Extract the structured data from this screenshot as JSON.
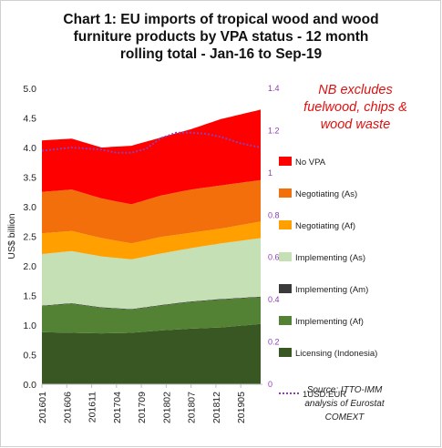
{
  "chart_data": {
    "type": "area",
    "title_lines": [
      "Chart 1: EU imports of tropical wood and wood",
      "furniture products by VPA status - 12 month",
      "rolling total - Jan-16 to Sep-19"
    ],
    "ylabel": "US$ billion",
    "ylim": [
      0,
      5.0
    ],
    "y_ticks": [
      "0.0",
      "0.5",
      "1.0",
      "1.5",
      "2.0",
      "2.5",
      "3.0",
      "3.5",
      "4.0",
      "4.5",
      "5.0"
    ],
    "y2lim": [
      0,
      1.4
    ],
    "y2_ticks": [
      "0",
      "0.2",
      "0.4",
      "0.6",
      "0.8",
      "1",
      "1.2",
      "1.4"
    ],
    "x_ticks": [
      "201601",
      "201606",
      "201611",
      "201704",
      "201709",
      "201802",
      "201807",
      "201812",
      "201905"
    ],
    "x_start": "2016-01",
    "x_end": "2019-09",
    "stacked": true,
    "legend_position": "right",
    "grid": false,
    "series": [
      {
        "name": "Licensing (Indonesia)",
        "color": "#385723",
        "x": [
          "2016-01",
          "2016-07",
          "2017-01",
          "2017-07",
          "2018-01",
          "2018-07",
          "2019-01",
          "2019-09"
        ],
        "values": [
          0.88,
          0.87,
          0.86,
          0.87,
          0.91,
          0.94,
          0.96,
          1.02
        ]
      },
      {
        "name": "Implementing (Af)",
        "color": "#548235",
        "x": [
          "2016-01",
          "2016-07",
          "2017-01",
          "2017-07",
          "2018-01",
          "2018-07",
          "2019-01",
          "2019-09"
        ],
        "values": [
          0.44,
          0.49,
          0.43,
          0.39,
          0.42,
          0.45,
          0.47,
          0.45
        ]
      },
      {
        "name": "Implementing (Am)",
        "color": "#3a3a3a",
        "x": [
          "2016-01",
          "2016-07",
          "2017-01",
          "2017-07",
          "2018-01",
          "2018-07",
          "2019-01",
          "2019-09"
        ],
        "values": [
          0.01,
          0.01,
          0.01,
          0.01,
          0.01,
          0.01,
          0.01,
          0.01
        ]
      },
      {
        "name": "Implementing (As)",
        "color": "#c5e0b4",
        "x": [
          "2016-01",
          "2016-07",
          "2017-01",
          "2017-07",
          "2018-01",
          "2018-07",
          "2019-01",
          "2019-09"
        ],
        "values": [
          0.87,
          0.88,
          0.86,
          0.84,
          0.87,
          0.9,
          0.94,
          0.99
        ]
      },
      {
        "name": "Negotiating (Af)",
        "color": "#ffa000",
        "x": [
          "2016-01",
          "2016-07",
          "2017-01",
          "2017-07",
          "2018-01",
          "2018-07",
          "2019-01",
          "2019-09"
        ],
        "values": [
          0.35,
          0.34,
          0.31,
          0.27,
          0.28,
          0.26,
          0.25,
          0.28
        ]
      },
      {
        "name": "Negotiating (As)",
        "color": "#f26f0c",
        "x": [
          "2016-01",
          "2016-07",
          "2017-01",
          "2017-07",
          "2018-01",
          "2018-07",
          "2019-01",
          "2019-09"
        ],
        "values": [
          0.7,
          0.7,
          0.67,
          0.66,
          0.7,
          0.73,
          0.73,
          0.7
        ]
      },
      {
        "name": "No VPA",
        "color": "#ff0000",
        "x": [
          "2016-01",
          "2016-07",
          "2017-01",
          "2017-07",
          "2018-01",
          "2018-07",
          "2019-01",
          "2019-09"
        ],
        "values": [
          0.87,
          0.86,
          0.86,
          0.99,
          0.98,
          1.02,
          1.12,
          1.19
        ]
      }
    ],
    "fx_series": {
      "name": "1USD:EUR",
      "color": "#8e3fb3",
      "axis": "right",
      "x": [
        "2016-01",
        "2016-07",
        "2017-01",
        "2017-04",
        "2017-07",
        "2017-10",
        "2018-01",
        "2018-04",
        "2018-07",
        "2018-10",
        "2019-01",
        "2019-05",
        "2019-09"
      ],
      "values": [
        1.105,
        1.12,
        1.11,
        1.095,
        1.095,
        1.115,
        1.165,
        1.19,
        1.19,
        1.185,
        1.17,
        1.14,
        1.12
      ]
    },
    "annotation_lines": [
      "NB excludes",
      "fuelwood, chips &",
      "wood waste"
    ],
    "source_lines": [
      "Source: ITTO-IMM",
      "analysis of Eurostat",
      "COMEXT"
    ]
  }
}
